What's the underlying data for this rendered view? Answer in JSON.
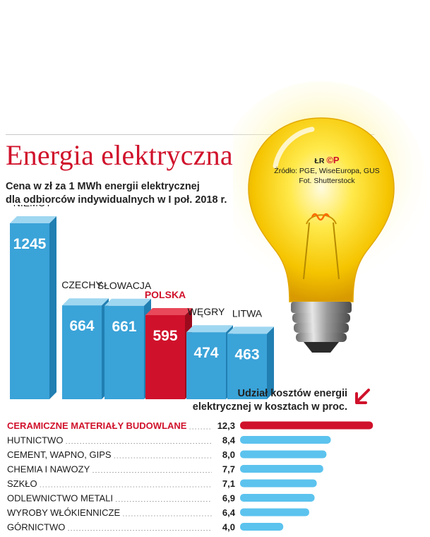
{
  "title": "Energia elektryczna",
  "subtitle_line1": "Cena w zł za 1 MWh energii elektrycznej",
  "subtitle_line2": "dla odbiorców indywidualnych w I poł. 2018 r.",
  "credits": {
    "logo_text": "ŁR",
    "logo_mark": "©P",
    "source": "Źródło: PGE, WiseEuropa, GUS",
    "photo": "Fot. Shutterstock"
  },
  "share_title_line1": "Udział kosztów energii",
  "share_title_line2": "elektrycznej w kosztach w proc.",
  "colors": {
    "bar_blue": "#3aa3d8",
    "bar_blue_side": "#217fb2",
    "bar_blue_top": "#9fd7f1",
    "highlight_red": "#d0112b",
    "highlight_red_side": "#9c0b1d",
    "highlight_red_top": "#e8485a",
    "share_blue": "#5cc3ee"
  },
  "icons": {
    "bulb": "light-bulb-icon",
    "arrow": "arrow-down-left-icon"
  },
  "chart_data": [
    {
      "type": "bar",
      "categories": [
        "NIEMCY",
        "CZECHY",
        "SŁOWACJA",
        "POLSKA",
        "WĘGRY",
        "LITWA"
      ],
      "values": [
        1245,
        664,
        661,
        595,
        474,
        463
      ],
      "highlight": "POLSKA",
      "title": "Cena w zł za 1 MWh energii elektrycznej dla odbiorców indywidualnych w I poł. 2018 r."
    },
    {
      "type": "bar",
      "orientation": "horizontal",
      "categories": [
        "CERAMICZNE MATERIAŁY BUDOWLANE",
        "HUTNICTWO",
        "CEMENT, WAPNO, GIPS",
        "CHEMIA I NAWOZY",
        "SZKŁO",
        "ODLEWNICTWO METALI",
        "WYROBY WŁÓKIENNICZE",
        "GÓRNICTWO"
      ],
      "values": [
        12.3,
        8.4,
        8.0,
        7.7,
        7.1,
        6.9,
        6.4,
        4.0
      ],
      "labels": [
        "12,3",
        "8,4",
        "8,0",
        "7,7",
        "7,1",
        "6,9",
        "6,4",
        "4,0"
      ],
      "highlight": "CERAMICZNE MATERIAŁY BUDOWLANE",
      "title": "Udział kosztów energii elektrycznej w kosztach w proc."
    }
  ]
}
